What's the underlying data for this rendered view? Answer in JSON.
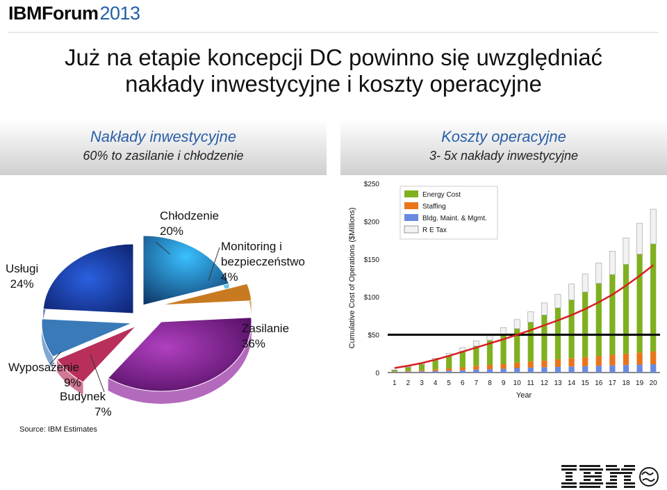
{
  "brand": {
    "name": "IBMForum",
    "year": "2013"
  },
  "title": {
    "line1": "Już na etapie koncepcji DC powinno się uwzględniać",
    "line2": "nakłady inwestycyjne i koszty operacyjne"
  },
  "left_panel": {
    "heading": "Nakłady inwestycyjne",
    "subheading": "60% to zasilanie i chłodzenie"
  },
  "right_panel": {
    "heading": "Koszty operacyjne",
    "subheading": "3- 5x nakłady inwestycyjne"
  },
  "pie_labels": {
    "uslugi_name": "Usługi",
    "uslugi_pct": "24%",
    "chlodzenie_name": "Chłodzenie",
    "chlodzenie_pct": "20%",
    "monitoring_name1": "Monitoring i",
    "monitoring_name2": "bezpieczeństwo",
    "monitoring_pct": "4%",
    "zasilanie_name": "Zasilanie",
    "zasilanie_pct": "36%",
    "wyposazenie_name": "Wyposażenie",
    "wyposazenie_pct": "9%",
    "budynek_name": "Budynek",
    "budynek_pct": "7%"
  },
  "source": "Source:  IBM Estimates",
  "chart_data": [
    {
      "type": "pie",
      "slices": [
        {
          "label": "Usługi",
          "value": 24,
          "color": "#1a3a9a"
        },
        {
          "label": "Chłodzenie",
          "value": 20,
          "color": "#1aa0e0"
        },
        {
          "label": "Monitoring i bezpieczeństwo",
          "value": 4,
          "color": "#c87a20"
        },
        {
          "label": "Zasilanie",
          "value": 36,
          "color": "#8a1a9a"
        },
        {
          "label": "Budynek",
          "value": 7,
          "color": "#b8305a"
        },
        {
          "label": "Wyposażenie",
          "value": 9,
          "color": "#3a7ab8"
        }
      ]
    },
    {
      "type": "bar",
      "ylabel": "Cumulative Cost of Operations ($Millions)",
      "xlabel": "Year",
      "ylim": [
        0,
        250
      ],
      "yticks": [
        "0",
        "$50",
        "$100",
        "$150",
        "$200",
        "$250"
      ],
      "categories": [
        "1",
        "2",
        "3",
        "4",
        "5",
        "6",
        "7",
        "8",
        "9",
        "10",
        "11",
        "12",
        "13",
        "14",
        "15",
        "16",
        "17",
        "18",
        "19",
        "20"
      ],
      "series": [
        {
          "name": "Energy Cost",
          "color": "#7fb020",
          "values": [
            2,
            5,
            8,
            12,
            16,
            21,
            26,
            32,
            38,
            45,
            52,
            60,
            68,
            77,
            86,
            96,
            106,
            118,
            130,
            142
          ]
        },
        {
          "name": "Staffing",
          "color": "#e8751a",
          "values": [
            0.5,
            1,
            1.5,
            2,
            3,
            4,
            5,
            6,
            6.5,
            7,
            8,
            9,
            10,
            11,
            12,
            13,
            14,
            15,
            16,
            17
          ]
        },
        {
          "name": "Bldg. Maint. & Mgmt.",
          "color": "#6a8ae0",
          "values": [
            0.5,
            1,
            1.5,
            2,
            2.5,
            3,
            4,
            4.5,
            5,
            6,
            6.5,
            7,
            7.5,
            8,
            8.5,
            9,
            9.5,
            10,
            10.5,
            11
          ]
        },
        {
          "name": "R E Tax",
          "color": "#f2f2f2",
          "values": [
            0.5,
            1,
            1.5,
            3,
            4,
            5,
            7,
            8,
            10,
            12,
            14,
            16,
            18,
            21,
            24,
            27,
            31,
            35,
            41,
            46
          ]
        }
      ],
      "trend_line": {
        "color": "#d42020",
        "values": [
          6,
          9,
          12.5,
          17,
          22,
          27.5,
          33,
          38.5,
          44,
          50,
          56,
          62.5,
          69,
          76,
          84,
          93,
          103,
          115,
          128,
          142
        ]
      },
      "reference_line": {
        "value": 50,
        "color": "#000000"
      },
      "legend_placement": "top-left"
    }
  ]
}
